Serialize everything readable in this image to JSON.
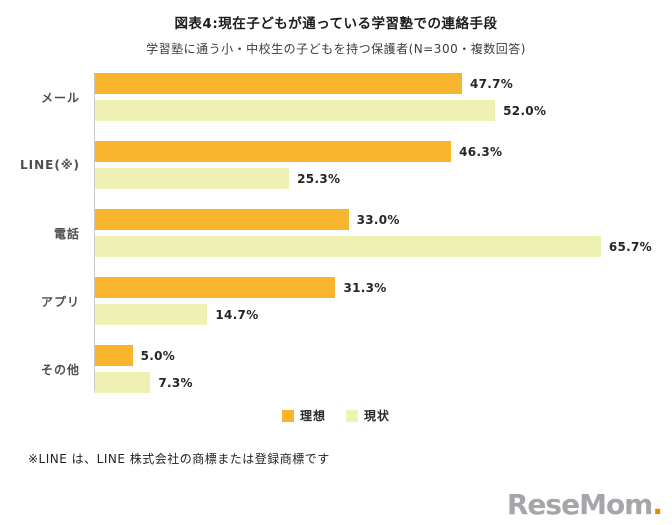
{
  "title": "図表4:現在子どもが通っている学習塾での連絡手段",
  "subtitle": "学習塾に通う小・中校生の子どもを持つ保護者(N=300・複数回答)",
  "chart_data": {
    "type": "bar",
    "orientation": "horizontal",
    "categories": [
      "メール",
      "LINE(※)",
      "電話",
      "アプリ",
      "その他"
    ],
    "series": [
      {
        "name": "理想",
        "color": "#f7b42c",
        "values": [
          47.7,
          46.3,
          33.0,
          31.3,
          5.0
        ],
        "labels": [
          "47.7%",
          "46.3%",
          "33.0%",
          "31.3%",
          "5.0%"
        ]
      },
      {
        "name": "現状",
        "color": "#eef0b4",
        "values": [
          52.0,
          25.3,
          65.7,
          14.7,
          7.3
        ],
        "labels": [
          "52.0%",
          "25.3%",
          "65.7%",
          "14.7%",
          "7.3%"
        ]
      }
    ],
    "xlim": [
      0,
      70
    ],
    "value_suffix": "%",
    "grid": false,
    "legend_position": "bottom"
  },
  "footnote": "※LINE は、LINE 株式会社の商標または登録商標です",
  "logo": {
    "text": "ReseMom",
    "dot": ".",
    "accent_color": "#f08300"
  }
}
